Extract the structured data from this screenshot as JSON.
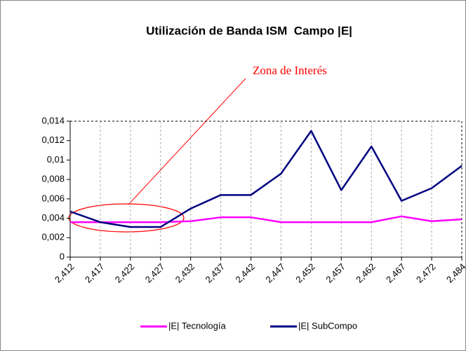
{
  "chart_data": {
    "type": "line",
    "title": "Utilización de Banda ISM  Campo |E|",
    "annotation": "Zona de Interés",
    "categories": [
      "2,412",
      "2,417",
      "2,422",
      "2,427",
      "2,432",
      "2,437",
      "2,442",
      "2,447",
      "2,452",
      "2,457",
      "2,462",
      "2,467",
      "2,472",
      "2,484"
    ],
    "series": [
      {
        "name": "|E| Tecnología",
        "color": "#ff00ff",
        "values": [
          0.0036,
          0.0036,
          0.0036,
          0.0036,
          0.0037,
          0.0041,
          0.0041,
          0.0036,
          0.0036,
          0.0036,
          0.0036,
          0.0042,
          0.0037,
          0.0039
        ]
      },
      {
        "name": "|E| SubCompo",
        "color": "#000080",
        "values": [
          0.0047,
          0.0036,
          0.0031,
          0.0031,
          0.005,
          0.0064,
          0.0064,
          0.0086,
          0.013,
          0.0069,
          0.0114,
          0.0058,
          0.0071,
          0.0094
        ]
      }
    ],
    "ylim": [
      0,
      0.014
    ],
    "yticks": [
      0,
      {
        "value": 0.002,
        "label": "0,002"
      },
      {
        "value": 0.004,
        "label": "0,004"
      },
      {
        "value": 0.006,
        "label": "0,006"
      },
      {
        "value": 0.008,
        "label": "0,008"
      },
      {
        "value": 0.01,
        "label": "0,01"
      },
      {
        "value": 0.012,
        "label": "0,012"
      },
      {
        "value": 0.014,
        "label": "0,014"
      }
    ],
    "grid": "x",
    "legend": "bottom"
  }
}
